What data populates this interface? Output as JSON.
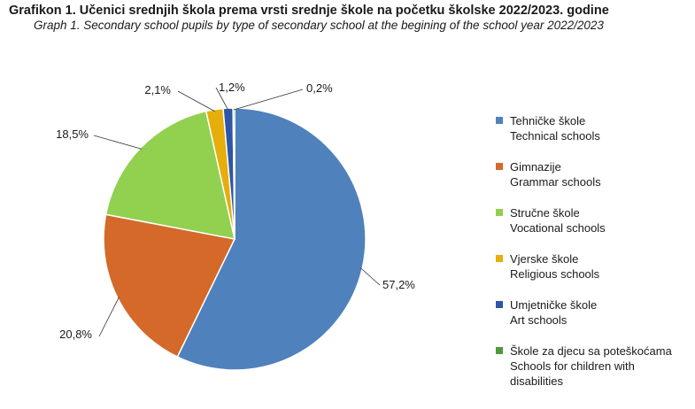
{
  "header": {
    "title": "Grafikon 1.  Učenici srednjih škola prema vrsti srednje škole na početku školske 2022/2023. godine",
    "subtitle": "Graph 1. Secondary school pupils by type of secondary school at the begining of the school year 2022/2023"
  },
  "chart_data": {
    "type": "pie",
    "title": "Grafikon 1.  Učenici srednjih škola prema vrsti srednje škole na početku školske 2022/2023. godine",
    "subtitle": "Graph 1. Secondary school pupils by type of secondary school at the begining of the school year 2022/2023",
    "legend_position": "right",
    "slices": [
      {
        "name": "Tehničke škole",
        "name_en": "Technical schools",
        "value": 57.2,
        "label": "57,2%",
        "color": "#4F81BD"
      },
      {
        "name": "Gimnazije",
        "name_en": "Grammar schools",
        "value": 20.8,
        "label": "20,8%",
        "color": "#D4692A"
      },
      {
        "name": "Stručne škole",
        "name_en": "Vocational schools",
        "value": 18.5,
        "label": "18,5%",
        "color": "#92D050"
      },
      {
        "name": "Vjerske škole",
        "name_en": "Religious schools",
        "value": 2.1,
        "label": "2,1%",
        "color": "#E5AE0B"
      },
      {
        "name": "Umjetničke škole",
        "name_en": "Art schools",
        "value": 1.2,
        "label": "1,2%",
        "color": "#2E56A6"
      },
      {
        "name": "Škole za djecu sa poteškoćama",
        "name_en": "Schools for children with disabilities",
        "value": 0.2,
        "label": "0,2%",
        "color": "#4E9A3C"
      }
    ]
  }
}
